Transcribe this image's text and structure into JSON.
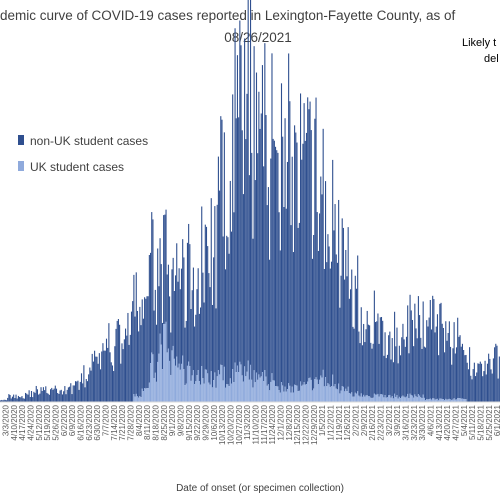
{
  "chart_data": {
    "type": "bar",
    "title_line1": "demic curve of COVID-19 cases reported in Lexington-Fayette County, as of",
    "title_line2": "08/26/2021",
    "note_line1": "Likely t",
    "note_line2": "del",
    "xlabel": "Date of onset (or specimen collection)",
    "stacked": true,
    "legend_placement": "upper-left",
    "series": [
      {
        "name": "non-UK student cases",
        "color": "#2F4F8F"
      },
      {
        "name": "UK student cases",
        "color": "#8FAADC"
      }
    ],
    "x_tick_labels": [
      "3/3/2020",
      "4/10/2020",
      "4/17/2020",
      "4/24/2020",
      "5/12/2020",
      "5/19/2020",
      "5/26/2020",
      "6/2/2020",
      "6/9/2020",
      "6/16/2020",
      "6/23/2020",
      "6/30/2020",
      "7/7/2020",
      "7/14/2020",
      "7/21/2020",
      "7/28/2020",
      "8/4/2020",
      "8/11/2020",
      "8/18/2020",
      "8/25/2020",
      "9/1/2020",
      "9/8/2020",
      "9/15/2020",
      "9/22/2020",
      "9/29/2020",
      "10/6/2020",
      "10/13/2020",
      "10/20/2020",
      "10/27/2020",
      "11/3/2020",
      "11/10/2020",
      "11/17/2020",
      "11/24/2020",
      "12/1/2020",
      "12/8/2020",
      "12/15/2020",
      "12/22/2020",
      "12/29/2020",
      "1/5/2021",
      "1/12/2021",
      "1/19/2021",
      "1/26/2021",
      "2/2/2021",
      "2/9/2021",
      "2/16/2021",
      "2/23/2021",
      "3/2/2021",
      "3/9/2021",
      "3/16/2021",
      "3/23/2021",
      "3/30/2021",
      "4/6/2021",
      "4/13/2021",
      "4/20/2021",
      "4/27/2021",
      "5/4/2021",
      "5/11/2021",
      "5/18/2021",
      "5/25/2021",
      "6/1/2021"
    ],
    "weekly_non_uk_cases": [
      1,
      2,
      2,
      3,
      4,
      4,
      4,
      4,
      5,
      7,
      9,
      13,
      16,
      19,
      22,
      27,
      30,
      33,
      34,
      28,
      22,
      30,
      34,
      32,
      40,
      45,
      60,
      75,
      85,
      92,
      92,
      82,
      78,
      90,
      88,
      75,
      70,
      68,
      60,
      55,
      50,
      42,
      38,
      30,
      25,
      20,
      18,
      20,
      22,
      24,
      25,
      28,
      27,
      25,
      20,
      16,
      14,
      12,
      13,
      14
    ],
    "weekly_uk_student_cases": [
      0,
      0,
      0,
      0,
      0,
      0,
      0,
      0,
      0,
      0,
      0,
      0,
      0,
      0,
      0,
      0,
      2,
      5,
      12,
      20,
      14,
      12,
      10,
      10,
      9,
      8,
      9,
      9,
      10,
      10,
      9,
      8,
      7,
      6,
      5,
      5,
      5,
      6,
      8,
      7,
      5,
      4,
      3,
      3,
      2,
      2,
      2,
      2,
      2,
      2,
      2,
      1,
      1,
      1,
      1,
      1,
      0,
      0,
      0,
      0
    ],
    "ylim": [
      0,
      100
    ]
  }
}
